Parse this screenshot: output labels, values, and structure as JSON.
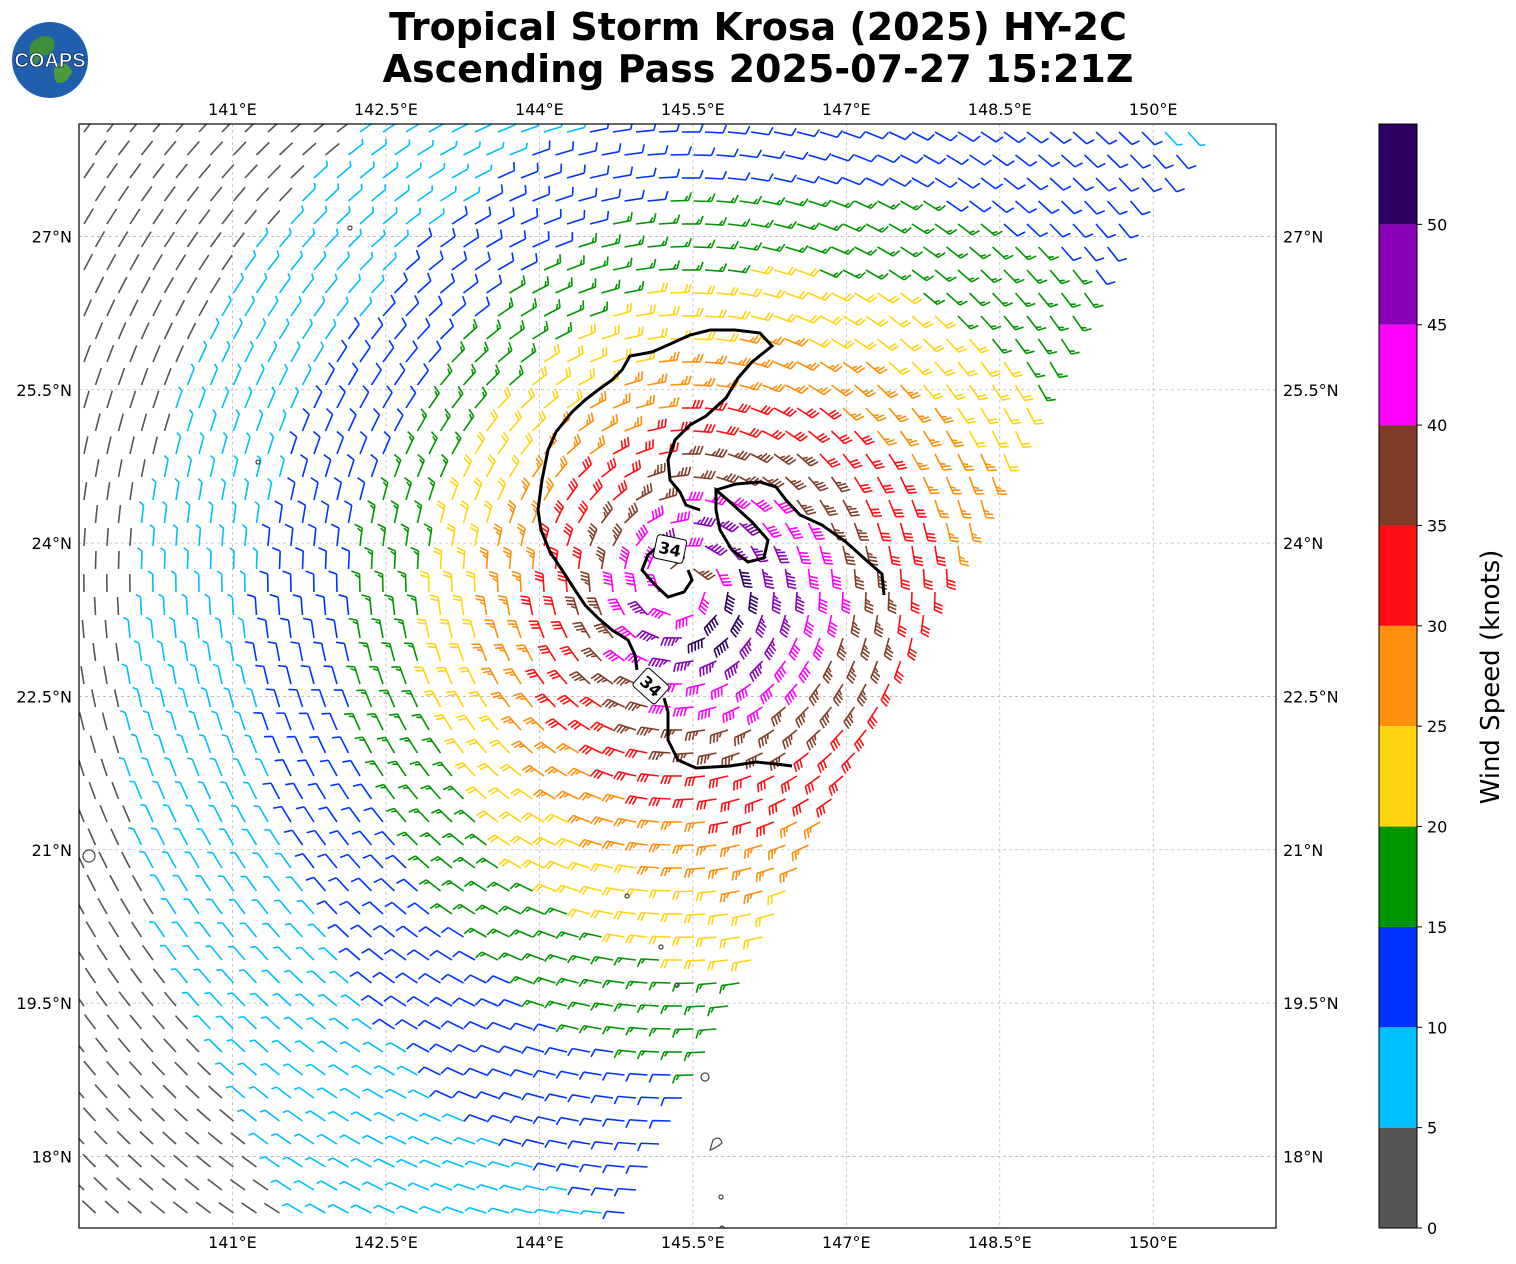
{
  "title": {
    "line1": "Tropical Storm Krosa (2025) HY-2C",
    "line2": "Ascending Pass 2025-07-27 15:21Z"
  },
  "logo": {
    "text": "COAPS",
    "icon": "globe-logo-icon"
  },
  "map": {
    "lon_ticks": [
      "141°E",
      "142.5°E",
      "144°E",
      "145.5°E",
      "147°E",
      "148.5°E",
      "150°E"
    ],
    "lat_ticks": [
      "27°N",
      "25.5°N",
      "24°N",
      "22.5°N",
      "21°N",
      "19.5°N",
      "18°N"
    ],
    "lon_range": [
      139.5,
      151.2
    ],
    "lat_range": [
      17.3,
      28.1
    ],
    "grid": true,
    "storm_center": {
      "lon": 145.4,
      "lat": 23.6
    },
    "contour_value": "34",
    "contour_labels": [
      "34",
      "34"
    ]
  },
  "colorbar": {
    "label": "Wind Speed (knots)",
    "ticks": [
      "0",
      "5",
      "10",
      "15",
      "20",
      "25",
      "30",
      "35",
      "40",
      "45",
      "50"
    ],
    "bins": [
      {
        "from": 0,
        "to": 5,
        "color": "#555555"
      },
      {
        "from": 5,
        "to": 10,
        "color": "#00bfff"
      },
      {
        "from": 10,
        "to": 15,
        "color": "#0033ff"
      },
      {
        "from": 15,
        "to": 20,
        "color": "#009600"
      },
      {
        "from": 20,
        "to": 25,
        "color": "#ffd511"
      },
      {
        "from": 25,
        "to": 30,
        "color": "#ff8f0c"
      },
      {
        "from": 30,
        "to": 35,
        "color": "#ff0f12"
      },
      {
        "from": 35,
        "to": 40,
        "color": "#7f3d28"
      },
      {
        "from": 40,
        "to": 45,
        "color": "#ff00ff"
      },
      {
        "from": 45,
        "to": 50,
        "color": "#8800b8"
      },
      {
        "from": 50,
        "to": 55,
        "color": "#2d0062"
      }
    ]
  }
}
